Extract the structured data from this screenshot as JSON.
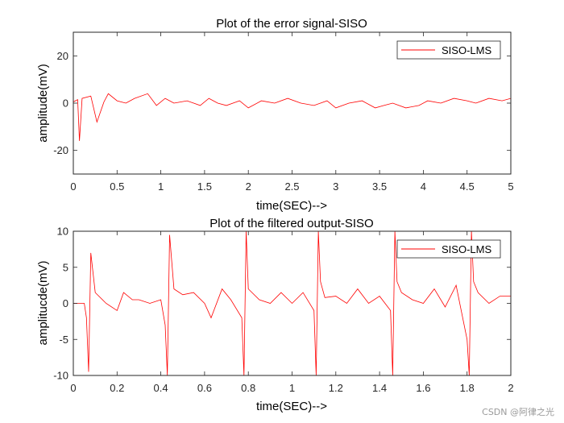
{
  "watermark": "CSDN @阿律之光",
  "chart_data": [
    {
      "type": "line",
      "title": "Plot of the error signal-SISO",
      "xlabel": "time(SEC)-->",
      "ylabel": "amplitude(mV)",
      "xlim": [
        0,
        5
      ],
      "ylim": [
        -30,
        30
      ],
      "xticks": [
        0,
        0.5,
        1,
        1.5,
        2,
        2.5,
        3,
        3.5,
        4,
        4.5,
        5
      ],
      "xtick_labels": [
        "0",
        "0.5",
        "1",
        "1.5",
        "2",
        "2.5",
        "3",
        "3.5",
        "4",
        "4.5",
        "5"
      ],
      "yticks": [
        -20,
        0,
        20
      ],
      "ytick_labels": [
        "-20",
        "0",
        "20"
      ],
      "grid": false,
      "legend_position": "top-right",
      "series": [
        {
          "name": "SISO-LMS",
          "color": "#ff0000",
          "x": [
            0,
            0.05,
            0.07,
            0.1,
            0.2,
            0.27,
            0.35,
            0.4,
            0.5,
            0.6,
            0.7,
            0.85,
            0.95,
            1.05,
            1.15,
            1.3,
            1.45,
            1.55,
            1.65,
            1.75,
            1.9,
            2.0,
            2.15,
            2.3,
            2.45,
            2.6,
            2.75,
            2.9,
            3.0,
            3.15,
            3.3,
            3.45,
            3.55,
            3.65,
            3.8,
            3.95,
            4.05,
            4.2,
            4.35,
            4.5,
            4.6,
            4.75,
            4.9,
            5.0
          ],
          "y": [
            0.5,
            1.5,
            -16,
            2,
            3,
            -8,
            0.5,
            4,
            1,
            0,
            2,
            4,
            -1,
            2,
            0,
            1,
            -1,
            2,
            0,
            -1,
            1,
            -2,
            1,
            0,
            2,
            0,
            -1,
            1,
            -2,
            0,
            1,
            -2,
            -1,
            0,
            -2,
            -1,
            1,
            0,
            2,
            1,
            0,
            2,
            1,
            2
          ]
        }
      ]
    },
    {
      "type": "line",
      "title": "Plot of the filtered output-SISO",
      "xlabel": "time(SEC)-->",
      "ylabel": "amplitucde(mV)",
      "xlim": [
        0,
        2
      ],
      "ylim": [
        -10,
        10
      ],
      "xticks": [
        0,
        0.2,
        0.4,
        0.6,
        0.8,
        1,
        1.2,
        1.4,
        1.6,
        1.8,
        2
      ],
      "xtick_labels": [
        "0",
        "0.2",
        "0.4",
        "0.6",
        "0.8",
        "1",
        "1.2",
        "1.4",
        "1.6",
        "1.8",
        "2"
      ],
      "yticks": [
        -10,
        -5,
        0,
        5,
        10
      ],
      "ytick_labels": [
        "-10",
        "-5",
        "0",
        "5",
        "10"
      ],
      "grid": false,
      "legend_position": "top-right",
      "series": [
        {
          "name": "SISO-LMS",
          "color": "#ff0000",
          "x": [
            0,
            0.05,
            0.06,
            0.07,
            0.08,
            0.1,
            0.15,
            0.2,
            0.23,
            0.27,
            0.3,
            0.35,
            0.4,
            0.42,
            0.43,
            0.44,
            0.46,
            0.5,
            0.55,
            0.6,
            0.63,
            0.68,
            0.72,
            0.77,
            0.78,
            0.79,
            0.8,
            0.85,
            0.9,
            0.95,
            1.0,
            1.05,
            1.1,
            1.11,
            1.12,
            1.13,
            1.15,
            1.2,
            1.25,
            1.3,
            1.35,
            1.4,
            1.45,
            1.46,
            1.47,
            1.48,
            1.5,
            1.55,
            1.6,
            1.65,
            1.7,
            1.75,
            1.8,
            1.81,
            1.82,
            1.83,
            1.85,
            1.9,
            1.95,
            2.0
          ],
          "y": [
            0,
            0,
            -2,
            -9.5,
            7,
            1.5,
            0,
            -1,
            1.5,
            0.5,
            0.5,
            0,
            0.5,
            -3,
            -10,
            9.5,
            2,
            1.2,
            1.5,
            0,
            -2,
            2,
            0.5,
            -2,
            -10,
            10,
            2,
            0.5,
            0,
            1.5,
            0,
            1.5,
            -1,
            -10,
            10,
            3,
            0.8,
            1,
            0,
            2,
            0,
            1,
            -1,
            -10,
            10,
            3,
            1.5,
            0.5,
            0,
            2,
            -0.5,
            2.5,
            -5,
            -10,
            10,
            3,
            1.5,
            0,
            1,
            1
          ]
        }
      ]
    }
  ]
}
